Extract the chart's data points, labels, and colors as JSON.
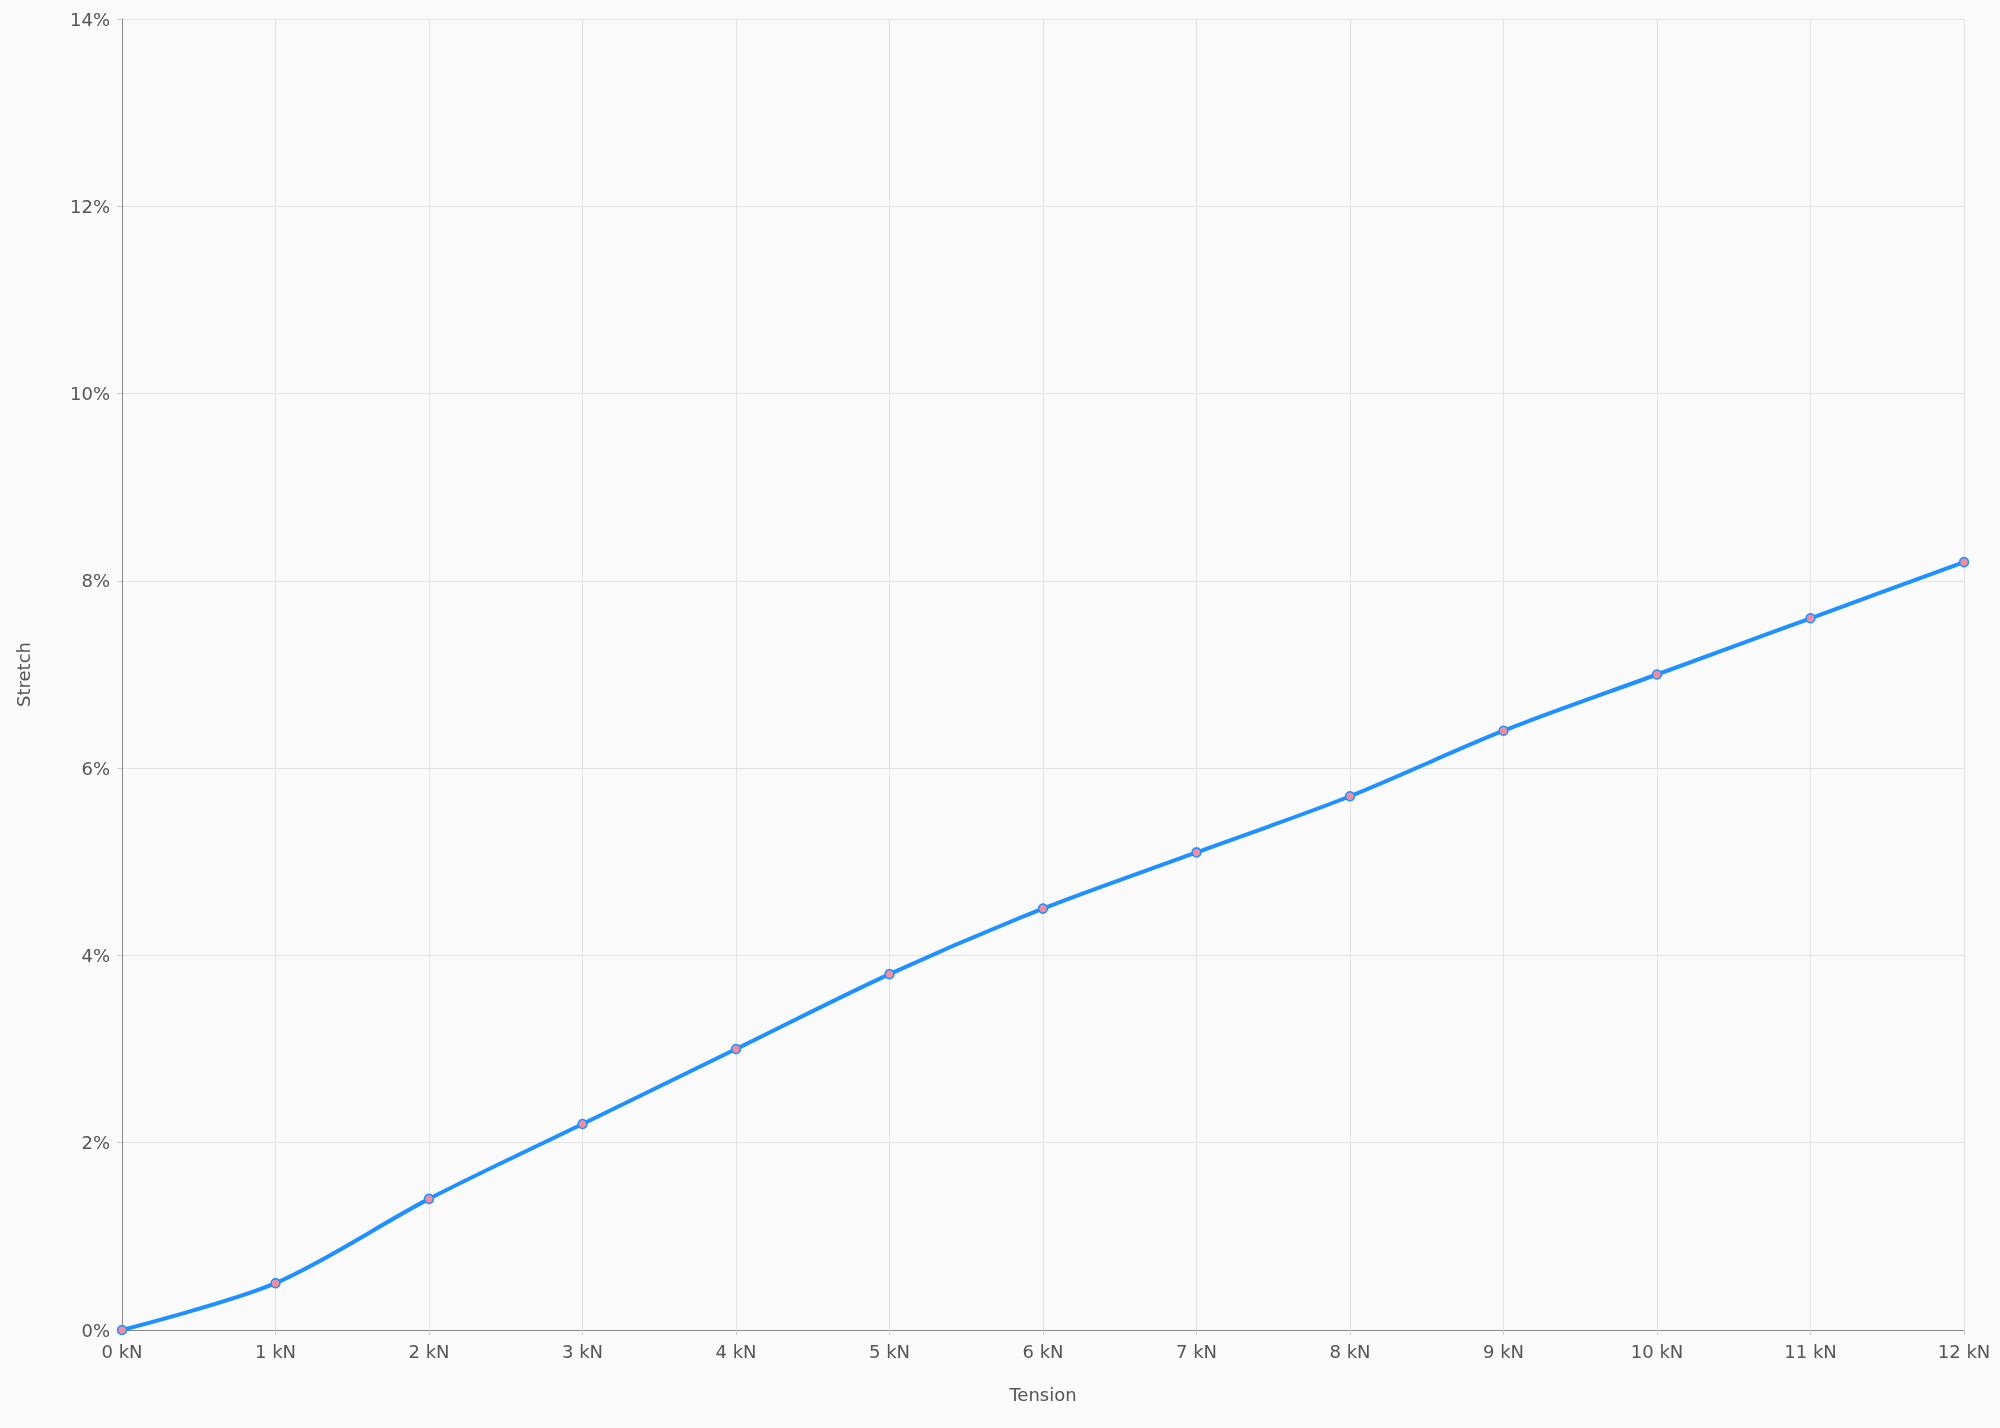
{
  "chart_data": {
    "type": "line",
    "xlabel": "Tension",
    "ylabel": "Stretch",
    "x": [
      0,
      1,
      2,
      3,
      4,
      5,
      6,
      7,
      8,
      9,
      10,
      11,
      12
    ],
    "series": [
      {
        "color": "#1e90ff",
        "values": [
          0,
          0.5,
          1.4,
          2.2,
          3.0,
          3.8,
          4.5,
          5.1,
          5.7,
          6.4,
          7.0,
          7.6,
          8.2
        ]
      }
    ],
    "xlim": [
      0,
      12
    ],
    "xticks": [
      {
        "value": 0,
        "label": "0 kN"
      },
      {
        "value": 1,
        "label": "1 kN"
      },
      {
        "value": 2,
        "label": "2 kN"
      },
      {
        "value": 3,
        "label": "3 kN"
      },
      {
        "value": 4,
        "label": "4 kN"
      },
      {
        "value": 5,
        "label": "5 kN"
      },
      {
        "value": 6,
        "label": "6 kN"
      },
      {
        "value": 7,
        "label": "7 kN"
      },
      {
        "value": 8,
        "label": "8 kN"
      },
      {
        "value": 9,
        "label": "9 kN"
      },
      {
        "value": 10,
        "label": "10 kN"
      },
      {
        "value": 11,
        "label": "11 kN"
      },
      {
        "value": 12,
        "label": "12 kN"
      }
    ],
    "ylim": [
      0,
      14
    ],
    "yticks": [
      {
        "value": 0,
        "label": "0%"
      },
      {
        "value": 2,
        "label": "2%"
      },
      {
        "value": 4,
        "label": "4%"
      },
      {
        "value": 6,
        "label": "6%"
      },
      {
        "value": 8,
        "label": "8%"
      },
      {
        "value": 10,
        "label": "10%"
      },
      {
        "value": 12,
        "label": "12%"
      },
      {
        "value": 14,
        "label": "14%"
      }
    ],
    "grid": true,
    "marker": "circle",
    "line_style": "solid"
  }
}
